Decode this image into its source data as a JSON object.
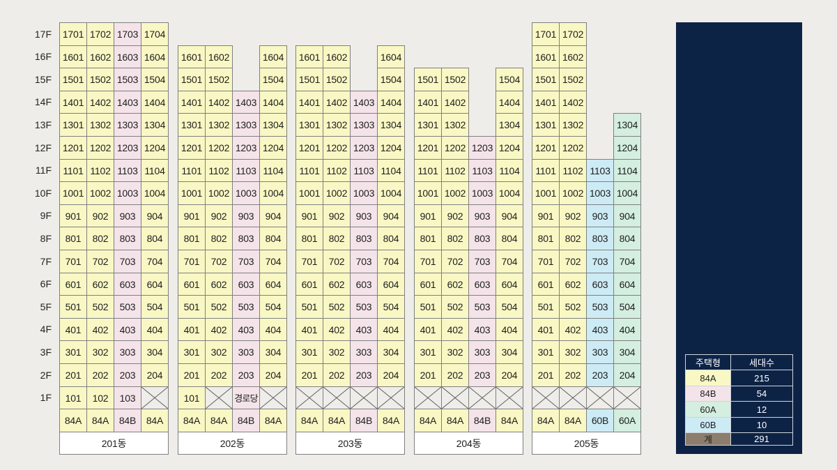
{
  "colors": {
    "page": "#efede9",
    "panel": "#0d2346",
    "grid_line": "#7f7f7f",
    "text": "#1e1e1e",
    "name_box": "#ffffff"
  },
  "floor_labels": [
    "17F",
    "16F",
    "15F",
    "14F",
    "13F",
    "12F",
    "11F",
    "10F",
    "9F",
    "8F",
    "7F",
    "6F",
    "5F",
    "4F",
    "3F",
    "2F",
    "1F"
  ],
  "buildings": [
    {
      "name": "201동",
      "types": [
        "84A",
        "84A",
        "84B",
        "84A"
      ],
      "crossed_1F_lines": [
        4
      ],
      "units": [
        [
          "1701",
          "1702",
          "1703",
          "1704"
        ],
        [
          "1601",
          "1602",
          "1603",
          "1604"
        ],
        [
          "1501",
          "1502",
          "1503",
          "1504"
        ],
        [
          "1401",
          "1402",
          "1403",
          "1404"
        ],
        [
          "1301",
          "1302",
          "1303",
          "1304"
        ],
        [
          "1201",
          "1202",
          "1203",
          "1204"
        ],
        [
          "1101",
          "1102",
          "1103",
          "1104"
        ],
        [
          "1001",
          "1002",
          "1003",
          "1004"
        ],
        [
          "901",
          "902",
          "903",
          "904"
        ],
        [
          "801",
          "802",
          "803",
          "804"
        ],
        [
          "701",
          "702",
          "703",
          "704"
        ],
        [
          "601",
          "602",
          "603",
          "604"
        ],
        [
          "501",
          "502",
          "503",
          "504"
        ],
        [
          "401",
          "402",
          "403",
          "404"
        ],
        [
          "301",
          "302",
          "303",
          "304"
        ],
        [
          "201",
          "202",
          "203",
          "204"
        ],
        [
          "101",
          "102",
          "103",
          null
        ]
      ]
    },
    {
      "name": "202동",
      "types": [
        "84A",
        "84A",
        "84B",
        "84A"
      ],
      "crossed_1F_lines": [
        2,
        4
      ],
      "units": [
        [
          null,
          null,
          null,
          null
        ],
        [
          "1601",
          "1602",
          null,
          "1604"
        ],
        [
          "1501",
          "1502",
          null,
          "1504"
        ],
        [
          "1401",
          "1402",
          "1403",
          "1404"
        ],
        [
          "1301",
          "1302",
          "1303",
          "1304"
        ],
        [
          "1201",
          "1202",
          "1203",
          "1204"
        ],
        [
          "1101",
          "1102",
          "1103",
          "1104"
        ],
        [
          "1001",
          "1002",
          "1003",
          "1004"
        ],
        [
          "901",
          "902",
          "903",
          "904"
        ],
        [
          "801",
          "802",
          "803",
          "804"
        ],
        [
          "701",
          "702",
          "703",
          "704"
        ],
        [
          "601",
          "602",
          "603",
          "604"
        ],
        [
          "501",
          "502",
          "503",
          "504"
        ],
        [
          "401",
          "402",
          "403",
          "404"
        ],
        [
          "301",
          "302",
          "303",
          "304"
        ],
        [
          "201",
          "202",
          "203",
          "204"
        ],
        [
          "101",
          null,
          "경로당",
          null
        ]
      ]
    },
    {
      "name": "203동",
      "types": [
        "84A",
        "84A",
        "84B",
        "84A"
      ],
      "crossed_1F_lines": [
        1,
        2,
        3,
        4
      ],
      "units": [
        [
          null,
          null,
          null,
          null
        ],
        [
          "1601",
          "1602",
          null,
          "1604"
        ],
        [
          "1501",
          "1502",
          null,
          "1504"
        ],
        [
          "1401",
          "1402",
          "1403",
          "1404"
        ],
        [
          "1301",
          "1302",
          "1303",
          "1304"
        ],
        [
          "1201",
          "1202",
          "1203",
          "1204"
        ],
        [
          "1101",
          "1102",
          "1103",
          "1104"
        ],
        [
          "1001",
          "1002",
          "1003",
          "1004"
        ],
        [
          "901",
          "902",
          "903",
          "904"
        ],
        [
          "801",
          "802",
          "803",
          "804"
        ],
        [
          "701",
          "702",
          "703",
          "704"
        ],
        [
          "601",
          "602",
          "603",
          "604"
        ],
        [
          "501",
          "502",
          "503",
          "504"
        ],
        [
          "401",
          "402",
          "403",
          "404"
        ],
        [
          "301",
          "302",
          "303",
          "304"
        ],
        [
          "201",
          "202",
          "203",
          "204"
        ],
        [
          null,
          null,
          null,
          null
        ]
      ]
    },
    {
      "name": "204동",
      "types": [
        "84A",
        "84A",
        "84B",
        "84A"
      ],
      "crossed_1F_lines": [
        1,
        2,
        3,
        4
      ],
      "units": [
        [
          null,
          null,
          null,
          null
        ],
        [
          null,
          null,
          null,
          null
        ],
        [
          "1501",
          "1502",
          null,
          "1504"
        ],
        [
          "1401",
          "1402",
          null,
          "1404"
        ],
        [
          "1301",
          "1302",
          null,
          "1304"
        ],
        [
          "1201",
          "1202",
          "1203",
          "1204"
        ],
        [
          "1101",
          "1102",
          "1103",
          "1104"
        ],
        [
          "1001",
          "1002",
          "1003",
          "1004"
        ],
        [
          "901",
          "902",
          "903",
          "904"
        ],
        [
          "801",
          "802",
          "803",
          "804"
        ],
        [
          "701",
          "702",
          "703",
          "704"
        ],
        [
          "601",
          "602",
          "603",
          "604"
        ],
        [
          "501",
          "502",
          "503",
          "504"
        ],
        [
          "401",
          "402",
          "403",
          "404"
        ],
        [
          "301",
          "302",
          "303",
          "304"
        ],
        [
          "201",
          "202",
          "203",
          "204"
        ],
        [
          null,
          null,
          null,
          null
        ]
      ]
    },
    {
      "name": "205동",
      "types": [
        "84A",
        "84A",
        "60B",
        "60A"
      ],
      "crossed_1F_lines": [
        1,
        2,
        3,
        4
      ],
      "units": [
        [
          "1701",
          "1702",
          null,
          null
        ],
        [
          "1601",
          "1602",
          null,
          null
        ],
        [
          "1501",
          "1502",
          null,
          null
        ],
        [
          "1401",
          "1402",
          null,
          null
        ],
        [
          "1301",
          "1302",
          null,
          "1304"
        ],
        [
          "1201",
          "1202",
          null,
          "1204"
        ],
        [
          "1101",
          "1102",
          "1103",
          "1104"
        ],
        [
          "1001",
          "1002",
          "1003",
          "1004"
        ],
        [
          "901",
          "902",
          "903",
          "904"
        ],
        [
          "801",
          "802",
          "803",
          "804"
        ],
        [
          "701",
          "702",
          "703",
          "704"
        ],
        [
          "601",
          "602",
          "603",
          "604"
        ],
        [
          "501",
          "502",
          "503",
          "504"
        ],
        [
          "401",
          "402",
          "403",
          "404"
        ],
        [
          "301",
          "302",
          "303",
          "304"
        ],
        [
          "201",
          "202",
          "203",
          "204"
        ],
        [
          null,
          null,
          null,
          null
        ]
      ]
    }
  ],
  "legend": {
    "headers": [
      "주택형",
      "세대수"
    ],
    "rows": [
      {
        "type": "84A",
        "count": "215",
        "color": "#f9f8c4"
      },
      {
        "type": "84B",
        "count": "54",
        "color": "#f4e4e9"
      },
      {
        "type": "60A",
        "count": "12",
        "color": "#d4eee0"
      },
      {
        "type": "60B",
        "count": "10",
        "color": "#cdebf5"
      },
      {
        "type": "계",
        "count": "291",
        "color": "#8c7d6c"
      }
    ]
  }
}
